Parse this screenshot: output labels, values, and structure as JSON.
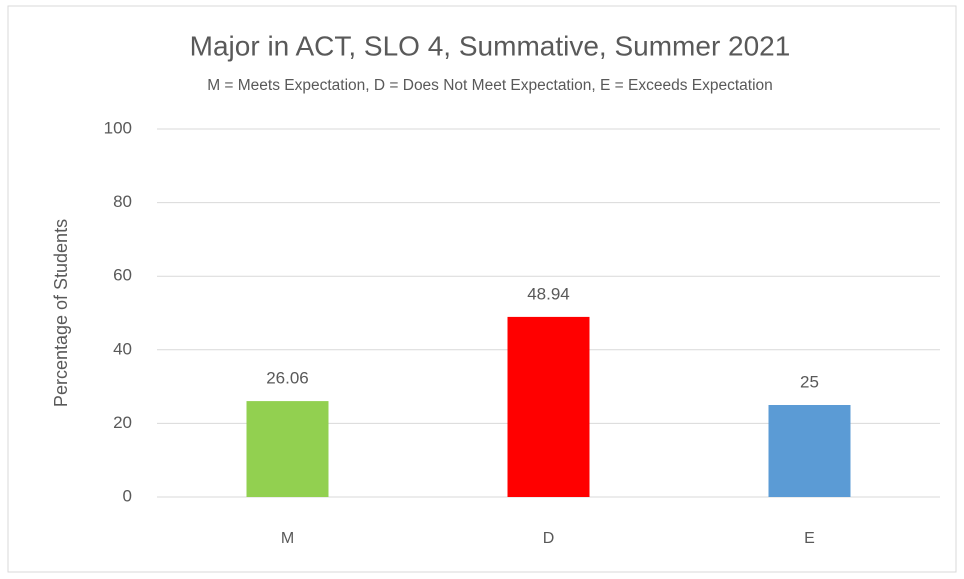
{
  "chart_data": {
    "type": "bar",
    "title": "Major in ACT, SLO 4, Summative, Summer 2021",
    "subtitle": "M = Meets Expectation, D = Does Not Meet Expectation, E = Exceeds Expectation",
    "y_label": "Percentage of Students",
    "categories": [
      "M",
      "D",
      "E"
    ],
    "values": [
      26.06,
      48.94,
      25
    ],
    "colors": [
      "#92d050",
      "#ff0000",
      "#5b9bd5"
    ],
    "ylim": [
      0,
      100
    ],
    "yticks": [
      0,
      20,
      40,
      60,
      80,
      100
    ],
    "grid": true
  }
}
